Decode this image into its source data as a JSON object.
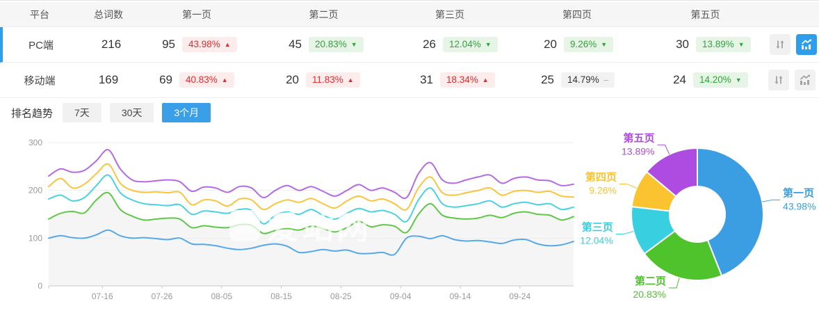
{
  "table": {
    "headers": [
      "平台",
      "总词数",
      "第一页",
      "第二页",
      "第三页",
      "第四页",
      "第五页"
    ],
    "rows": [
      {
        "platform": "PC端",
        "total": "216",
        "selected": true,
        "pages": [
          {
            "count": "95",
            "pct": "43.98%",
            "trend": "up"
          },
          {
            "count": "45",
            "pct": "20.83%",
            "trend": "down"
          },
          {
            "count": "26",
            "pct": "12.04%",
            "trend": "down"
          },
          {
            "count": "20",
            "pct": "9.26%",
            "trend": "down"
          },
          {
            "count": "30",
            "pct": "13.89%",
            "trend": "down"
          }
        ],
        "trend_button_active": true
      },
      {
        "platform": "移动端",
        "total": "169",
        "selected": false,
        "pages": [
          {
            "count": "69",
            "pct": "40.83%",
            "trend": "up"
          },
          {
            "count": "20",
            "pct": "11.83%",
            "trend": "up"
          },
          {
            "count": "31",
            "pct": "18.34%",
            "trend": "up"
          },
          {
            "count": "25",
            "pct": "14.79%",
            "trend": "flat"
          },
          {
            "count": "24",
            "pct": "14.20%",
            "trend": "down"
          }
        ],
        "trend_button_active": false
      }
    ],
    "icons": {
      "sort": "up-down-arrows",
      "trend": "bar-line-chart"
    }
  },
  "trend_section": {
    "title": "排名趋势",
    "tabs": [
      {
        "label": "7天",
        "active": false
      },
      {
        "label": "30天",
        "active": false
      },
      {
        "label": "3个月",
        "active": true
      }
    ]
  },
  "watermark": {
    "text": "爱站网"
  },
  "colors": {
    "accent_blue": "#2E9DEC",
    "badge_up_text": "#E52B2B",
    "badge_up_bg": "#FDECEC",
    "badge_down_text": "#2FA43C",
    "badge_down_bg": "#E7F5E6",
    "badge_flat_bg": "#F2F2F2",
    "header_bg": "#F6F6F6"
  },
  "chart_data": [
    {
      "type": "line",
      "title": "排名趋势（3个月）",
      "x_tick_labels": [
        "07-16",
        "07-26",
        "08-05",
        "08-15",
        "08-25",
        "09-04",
        "09-14",
        "09-24"
      ],
      "x_tick_days": [
        9,
        19,
        29,
        39,
        49,
        59,
        69,
        79
      ],
      "x_total_days": 88,
      "x_step_days": 2,
      "ylim": [
        0,
        300
      ],
      "y_ticks": [
        0,
        100,
        200,
        300
      ],
      "grid": true,
      "legend_position": "none",
      "series": [
        {
          "name": "第一页",
          "color": "#56A8E8",
          "values": [
            100,
            105,
            101,
            100,
            107,
            117,
            105,
            100,
            101,
            99,
            97,
            100,
            88,
            87,
            84,
            79,
            76,
            79,
            85,
            88,
            83,
            70,
            72,
            76,
            73,
            75,
            68,
            68,
            70,
            66,
            100,
            104,
            99,
            105,
            97,
            94,
            95,
            92,
            89,
            96,
            97,
            88,
            84,
            86,
            93
          ]
        },
        {
          "name": "第二页",
          "color": "#5FC848",
          "area_fill": "#f5f5f5",
          "values": [
            140,
            152,
            156,
            153,
            180,
            195,
            160,
            146,
            138,
            140,
            142,
            140,
            122,
            126,
            123,
            122,
            128,
            127,
            110,
            116,
            120,
            117,
            125,
            120,
            113,
            122,
            135,
            124,
            128,
            125,
            112,
            150,
            172,
            148,
            142,
            140,
            142,
            148,
            143,
            152,
            155,
            150,
            148,
            138,
            145
          ]
        },
        {
          "name": "第三页",
          "color": "#49D2E2",
          "values": [
            182,
            190,
            178,
            185,
            210,
            232,
            195,
            180,
            172,
            170,
            168,
            170,
            150,
            157,
            155,
            152,
            160,
            158,
            130,
            148,
            155,
            150,
            160,
            148,
            140,
            152,
            162,
            155,
            158,
            150,
            135,
            180,
            205,
            172,
            165,
            168,
            172,
            178,
            165,
            172,
            175,
            170,
            172,
            160,
            165
          ]
        },
        {
          "name": "第四页",
          "color": "#FCC43E",
          "values": [
            208,
            225,
            205,
            213,
            235,
            255,
            215,
            200,
            196,
            197,
            195,
            196,
            170,
            180,
            178,
            167,
            182,
            180,
            160,
            172,
            180,
            175,
            183,
            172,
            163,
            178,
            188,
            178,
            182,
            172,
            160,
            205,
            228,
            195,
            190,
            195,
            200,
            205,
            190,
            198,
            200,
            196,
            198,
            188,
            186
          ]
        },
        {
          "name": "第五页",
          "color": "#B56AE4",
          "values": [
            230,
            245,
            238,
            242,
            262,
            285,
            245,
            222,
            218,
            220,
            222,
            218,
            198,
            207,
            205,
            196,
            208,
            205,
            185,
            200,
            210,
            200,
            208,
            198,
            188,
            200,
            212,
            200,
            205,
            196,
            185,
            235,
            258,
            222,
            215,
            222,
            228,
            232,
            215,
            225,
            228,
            222,
            220,
            210,
            213
          ]
        }
      ]
    },
    {
      "type": "pie",
      "donut": true,
      "inner_radius": 40,
      "outer_radius": 95,
      "slices": [
        {
          "label": "第一页",
          "value": 43.98,
          "display": "43.98%",
          "color": "#3B9EE2"
        },
        {
          "label": "第二页",
          "value": 20.83,
          "display": "20.83%",
          "color": "#4FC32B"
        },
        {
          "label": "第三页",
          "value": 12.04,
          "display": "12.04%",
          "color": "#38D0E0"
        },
        {
          "label": "第四页",
          "value": 9.26,
          "display": "9.26%",
          "color": "#FBC330"
        },
        {
          "label": "第五页",
          "value": 13.89,
          "display": "13.89%",
          "color": "#AE4BE0"
        }
      ]
    }
  ]
}
